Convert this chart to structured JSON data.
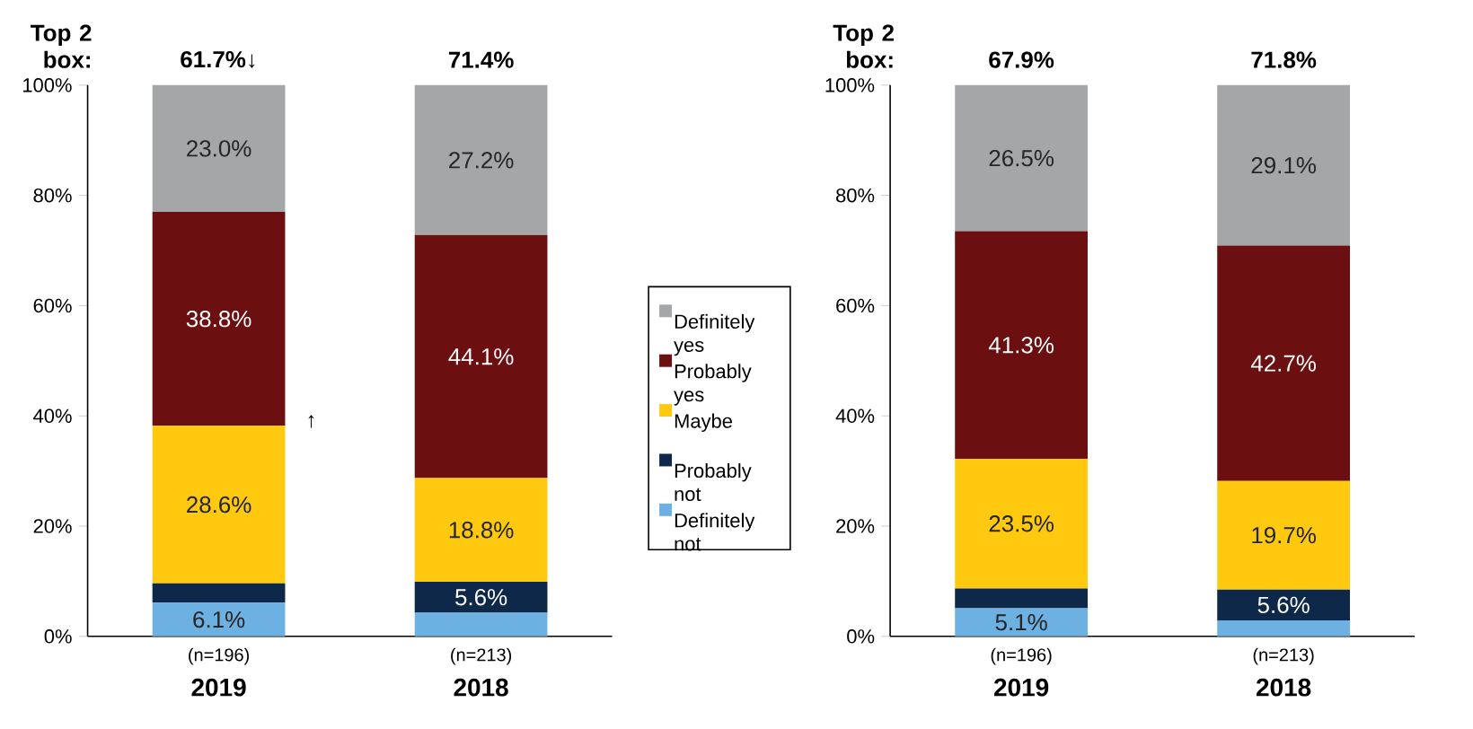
{
  "chart_data": [
    {
      "type": "bar",
      "stacked": true,
      "categories": [
        "2019",
        "2018"
      ],
      "ylim": [
        0,
        100
      ],
      "yticks": [
        {
          "value": 0,
          "label": "0%"
        },
        {
          "value": 20,
          "label": "20%"
        },
        {
          "value": 40,
          "label": "40%"
        },
        {
          "value": 60,
          "label": "60%"
        },
        {
          "value": 80,
          "label": "80%"
        },
        {
          "value": 100,
          "label": "100%"
        }
      ],
      "legend": "right",
      "annotations": [
        "Top 2 box:",
        "(n=196)",
        "(n=213)",
        "↑",
        {
          "text": "61.7%↓",
          "x": "2019",
          "y": 100
        },
        {
          "text": "71.4%",
          "x": "2018",
          "y": 100
        }
      ],
      "series": [
        {
          "name": "Definitely not",
          "color": "#6cb1e1",
          "values": [
            6.1,
            4.3
          ],
          "value_labels": [
            "6.1%",
            null
          ]
        },
        {
          "name": "Probably not",
          "color": "#0d2848",
          "values": [
            3.5,
            5.6
          ],
          "value_labels": [
            null,
            "5.6%"
          ]
        },
        {
          "name": "Maybe",
          "color": "#fec90f",
          "values": [
            28.6,
            18.8
          ],
          "value_labels": [
            "28.6%",
            "18.8%"
          ]
        },
        {
          "name": "Probably yes",
          "color": "#6b0f11",
          "values": [
            38.8,
            44.1
          ],
          "value_labels": [
            "38.8%",
            "44.1%"
          ]
        },
        {
          "name": "Definitely yes",
          "color": "#a5a6a8",
          "values": [
            23.0,
            27.2
          ],
          "value_labels": [
            "23.0%",
            "27.2%"
          ]
        }
      ]
    },
    {
      "type": "bar",
      "stacked": true,
      "categories": [
        "2019",
        "2018"
      ],
      "ylim": [
        0,
        100
      ],
      "yticks": [
        {
          "value": 0,
          "label": "0%"
        },
        {
          "value": 20,
          "label": "20%"
        },
        {
          "value": 40,
          "label": "40%"
        },
        {
          "value": 60,
          "label": "60%"
        },
        {
          "value": 80,
          "label": "80%"
        },
        {
          "value": 100,
          "label": "100%"
        }
      ],
      "annotations": [
        "Top 2 box:",
        "(n=196)",
        "(n=213)",
        {
          "text": "67.9%",
          "x": "2019",
          "y": 100
        },
        {
          "text": "71.8%",
          "x": "2018",
          "y": 100
        }
      ],
      "series": [
        {
          "color": "#6cb1e1",
          "values": [
            5.1,
            2.9
          ],
          "value_labels": [
            "5.1%",
            null
          ]
        },
        {
          "color": "#0d2848",
          "values": [
            3.6,
            5.6
          ],
          "value_labels": [
            null,
            "5.6%"
          ]
        },
        {
          "color": "#fec90f",
          "values": [
            23.5,
            19.7
          ],
          "value_labels": [
            "23.5%",
            "19.7%"
          ]
        },
        {
          "color": "#6b0f11",
          "values": [
            41.3,
            42.7
          ],
          "value_labels": [
            "41.3%",
            "42.7%"
          ]
        },
        {
          "color": "#a5a6a8",
          "values": [
            26.5,
            29.1
          ],
          "value_labels": [
            "26.5%",
            "29.1%"
          ]
        }
      ]
    }
  ]
}
